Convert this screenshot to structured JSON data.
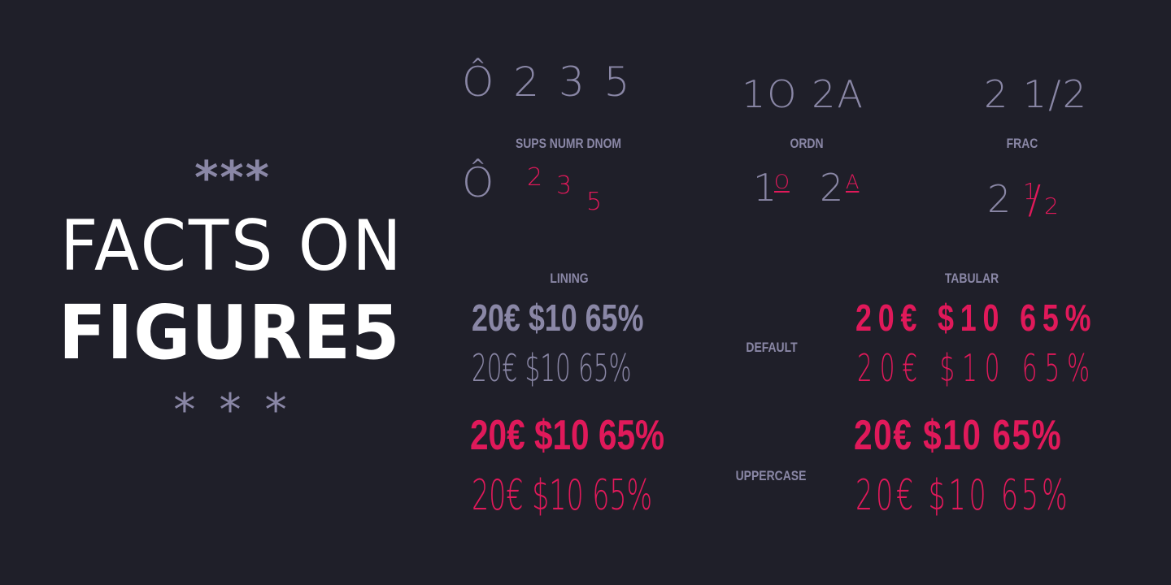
{
  "title": {
    "stars_top": "***",
    "line1": "FACTS ON",
    "line2": "FIGURE5",
    "stars_bottom": "* * *"
  },
  "features": {
    "sample_sups": "Ô 2 3 5",
    "label_sups": "SUPS  NUMR  DNOM",
    "sups_base": "Ô",
    "sups_d1": "2",
    "sups_d2": "3",
    "sups_d3": "5",
    "sample_ordn": "1O 2A",
    "label_ordn": "ORDN",
    "ordn_n1": "1",
    "ordn_s1": "O",
    "ordn_n2": "2",
    "ordn_s2": "A",
    "sample_frac": "2 1/2",
    "label_frac": "FRAC",
    "frac_whole": "2",
    "frac_num": "1",
    "frac_slash": "/",
    "frac_den": "2"
  },
  "figures": {
    "label_lining": "LINING",
    "label_tabular": "TABULAR",
    "label_default": "DEFAULT",
    "label_uppercase": "UPPERCASE",
    "sample": "20€ $10 65%",
    "colors": {
      "accent": "#e0195a",
      "muted": "#8a87a6",
      "background": "#1f1f29",
      "title": "#ffffff"
    }
  }
}
